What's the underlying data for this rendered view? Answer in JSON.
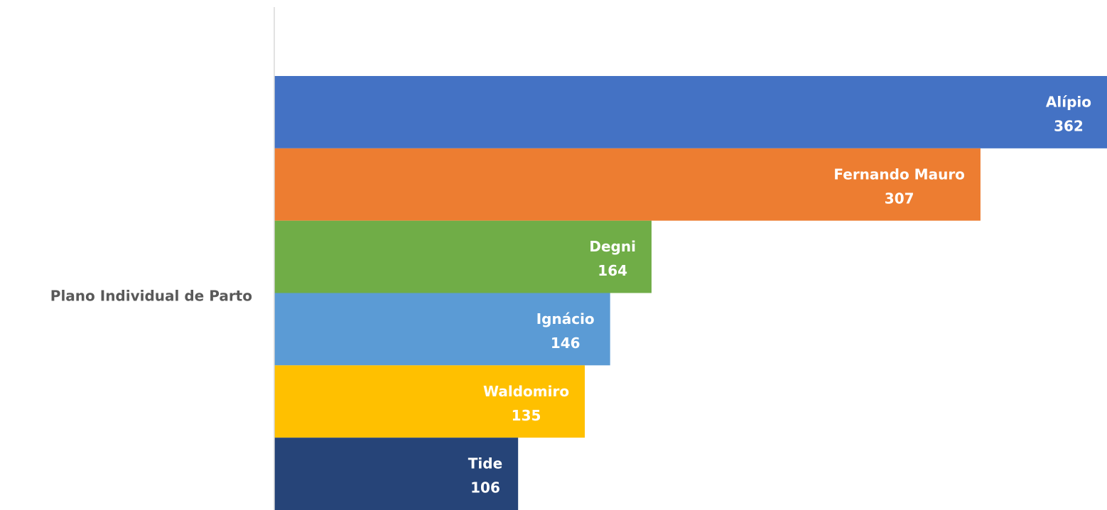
{
  "chart_data": {
    "type": "bar",
    "orientation": "horizontal",
    "categories": [
      "Plano Individual de Parto"
    ],
    "xlim": [
      0,
      362
    ],
    "series": [
      {
        "name": "Alípio",
        "color": "#4472c4",
        "values": [
          362
        ]
      },
      {
        "name": "Fernando Mauro",
        "color": "#ed7d31",
        "values": [
          307
        ]
      },
      {
        "name": "Degni",
        "color": "#70ad47",
        "values": [
          164
        ]
      },
      {
        "name": "Ignácio",
        "color": "#5b9bd5",
        "values": [
          146
        ]
      },
      {
        "name": "Waldomiro",
        "color": "#ffc000",
        "values": [
          135
        ]
      },
      {
        "name": "Tide",
        "color": "#264478",
        "values": [
          106
        ]
      }
    ]
  }
}
